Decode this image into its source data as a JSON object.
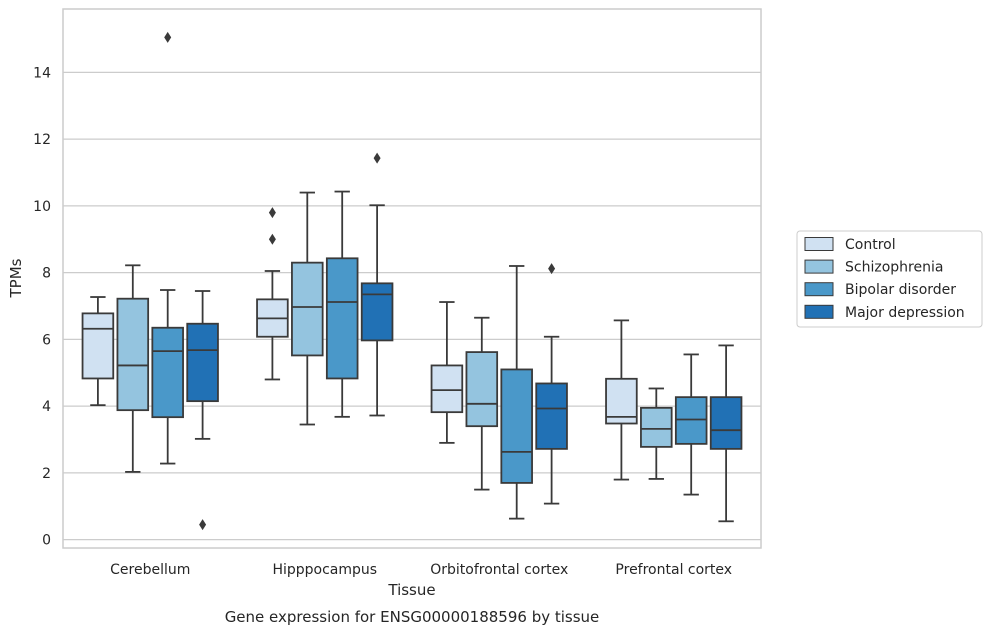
{
  "chart_data": {
    "type": "box",
    "caption": "Gene expression for ENSG00000188596 by tissue",
    "xlabel": "Tissue",
    "ylabel": "TPMs",
    "ylim": [
      -0.25,
      15.9
    ],
    "yticks": [
      0,
      2,
      4,
      6,
      8,
      10,
      12,
      14
    ],
    "grid": "horizontal",
    "legend_position": "right",
    "categories": [
      "Cerebellum",
      "Hipppocampus",
      "Orbitofrontal cortex",
      "Prefrontal cortex"
    ],
    "series": [
      {
        "name": "Control",
        "color": "#d0e1f2",
        "boxes": [
          {
            "whislo": 4.03,
            "q1": 4.83,
            "med": 6.32,
            "q3": 6.78,
            "whishi": 7.27,
            "fliers": []
          },
          {
            "whislo": 4.8,
            "q1": 6.08,
            "med": 6.63,
            "q3": 7.2,
            "whishi": 8.05,
            "fliers": [
              9.8,
              9.0
            ]
          },
          {
            "whislo": 2.9,
            "q1": 3.82,
            "med": 4.48,
            "q3": 5.22,
            "whishi": 7.12,
            "fliers": []
          },
          {
            "whislo": 1.8,
            "q1": 3.48,
            "med": 3.68,
            "q3": 4.82,
            "whishi": 6.57,
            "fliers": []
          }
        ]
      },
      {
        "name": "Schizophrenia",
        "color": "#94c4df",
        "boxes": [
          {
            "whislo": 2.03,
            "q1": 3.88,
            "med": 5.22,
            "q3": 7.22,
            "whishi": 8.22,
            "fliers": []
          },
          {
            "whislo": 3.45,
            "q1": 5.52,
            "med": 6.97,
            "q3": 8.3,
            "whishi": 10.4,
            "fliers": []
          },
          {
            "whislo": 1.5,
            "q1": 3.4,
            "med": 4.07,
            "q3": 5.62,
            "whishi": 6.65,
            "fliers": []
          },
          {
            "whislo": 1.82,
            "q1": 2.78,
            "med": 3.32,
            "q3": 3.95,
            "whishi": 4.53,
            "fliers": []
          }
        ]
      },
      {
        "name": "Bipolar disorder",
        "color": "#4a98c9",
        "boxes": [
          {
            "whislo": 2.28,
            "q1": 3.67,
            "med": 5.65,
            "q3": 6.35,
            "whishi": 7.48,
            "fliers": [
              15.05
            ]
          },
          {
            "whislo": 3.68,
            "q1": 4.83,
            "med": 7.12,
            "q3": 8.43,
            "whishi": 10.43,
            "fliers": []
          },
          {
            "whislo": 0.63,
            "q1": 1.7,
            "med": 2.63,
            "q3": 5.1,
            "whishi": 8.2,
            "fliers": []
          },
          {
            "whislo": 1.35,
            "q1": 2.87,
            "med": 3.6,
            "q3": 4.27,
            "whishi": 5.55,
            "fliers": []
          }
        ]
      },
      {
        "name": "Major depression",
        "color": "#2171b5",
        "boxes": [
          {
            "whislo": 3.02,
            "q1": 4.15,
            "med": 5.68,
            "q3": 6.47,
            "whishi": 7.45,
            "fliers": [
              0.45
            ]
          },
          {
            "whislo": 3.72,
            "q1": 5.97,
            "med": 7.35,
            "q3": 7.68,
            "whishi": 10.02,
            "fliers": [
              11.43
            ]
          },
          {
            "whislo": 1.08,
            "q1": 2.72,
            "med": 3.93,
            "q3": 4.68,
            "whishi": 6.08,
            "fliers": [
              8.12
            ]
          },
          {
            "whislo": 0.55,
            "q1": 2.72,
            "med": 3.28,
            "q3": 4.27,
            "whishi": 5.82,
            "fliers": []
          }
        ]
      }
    ]
  }
}
